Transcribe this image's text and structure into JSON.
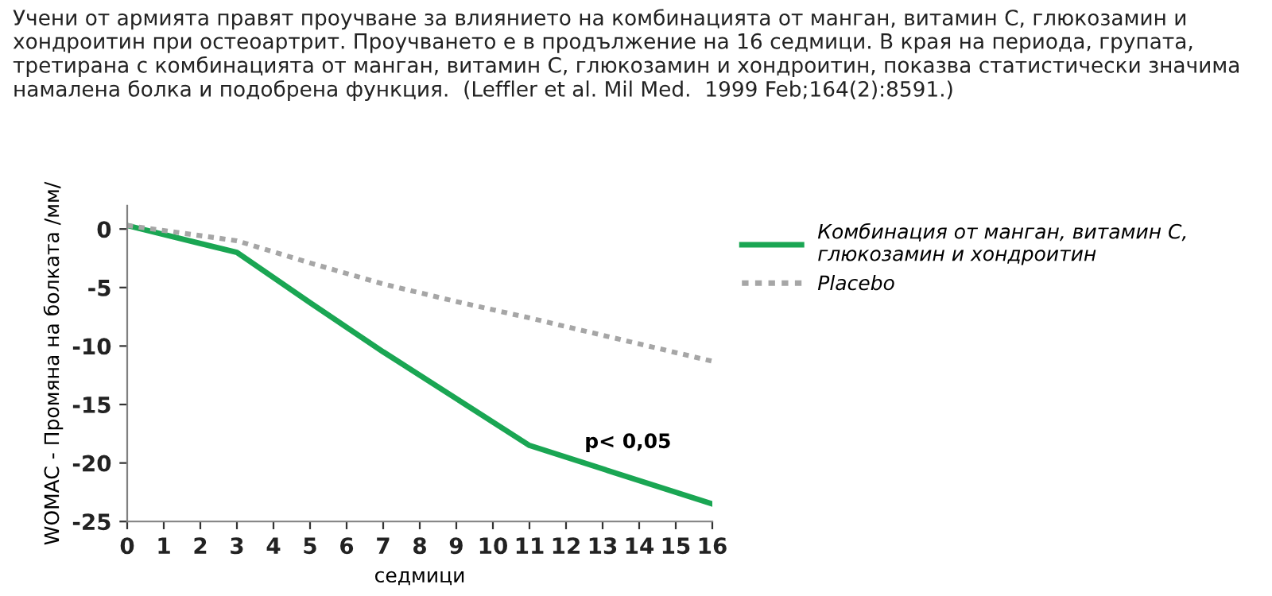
{
  "chart_data": {
    "type": "line",
    "title": "Учени от армията правят проучване за влиянието на комбинацията от манган, витамин С, глюкозамин и хондроитин при остеоартрит. Проучването е в продължение на 16 седмици. В края на периода, групата, третирана с комбинацията от манган, витамин С, глюкозамин и хондроитин, показва статистически значима намалена болка и подобрена функция.  (Leffler et al. Mil Med.  1999 Feb;164(2):8591.)",
    "xlabel": "седмици",
    "ylabel": "WOMAC - Промяна на болката /мм/",
    "x": [
      0,
      3,
      5,
      7,
      9,
      11,
      16
    ],
    "series": [
      {
        "name": "Комбинация от манган, витамин С,\nглюкозамин и хондроитин",
        "color": "#1aa653",
        "values": [
          0.3,
          -2,
          -6.3,
          -10.5,
          -14.5,
          -18.5,
          -23.5
        ],
        "line_style": "solid"
      },
      {
        "name": "Placebo",
        "color": "#a6a6a6",
        "values": [
          0.3,
          -1,
          -2.9,
          -4.7,
          -6.2,
          -7.6,
          -11.3
        ],
        "line_style": "dotted"
      }
    ],
    "annotations": [
      "p< 0,05"
    ],
    "xlim": [
      0,
      16
    ],
    "ylim": [
      -25,
      2
    ],
    "xticks": [
      0,
      1,
      2,
      3,
      4,
      5,
      6,
      7,
      8,
      9,
      10,
      11,
      12,
      13,
      14,
      15,
      16
    ],
    "yticks": [
      -25,
      -20,
      -15,
      -10,
      -5,
      0
    ],
    "grid": false,
    "legend": "right",
    "marker": "none"
  }
}
